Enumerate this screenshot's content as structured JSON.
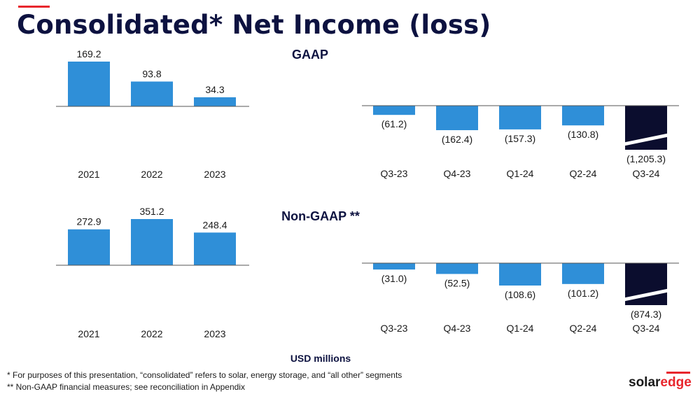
{
  "title": "Consolidated* Net Income (loss)",
  "units_label": "USD millions",
  "footnotes": [
    "* For purposes of this presentation, “consolidated” refers to solar, energy storage, and “all other” segments",
    "** Non-GAAP financial measures; see reconciliation in Appendix"
  ],
  "logo": {
    "part1": "solar",
    "part2": "edge"
  },
  "colors": {
    "bar": "#2f8fd8",
    "highlight": "#0b0d2e",
    "title": "#0d1240",
    "accent": "#e8262d"
  },
  "sections": {
    "gaap": "GAAP",
    "nongaap": "Non-GAAP **"
  },
  "chart_data": [
    {
      "type": "bar",
      "group": "GAAP annual",
      "categories": [
        "2021",
        "2022",
        "2023"
      ],
      "values": [
        169.2,
        93.8,
        34.3
      ],
      "labels": [
        "169.2",
        "93.8",
        "34.3"
      ]
    },
    {
      "type": "bar",
      "group": "GAAP quarterly",
      "categories": [
        "Q3-23",
        "Q4-23",
        "Q1-24",
        "Q2-24",
        "Q3-24"
      ],
      "values": [
        -61.2,
        -162.4,
        -157.3,
        -130.8,
        -1205.3
      ],
      "labels": [
        "(61.2)",
        "(162.4)",
        "(157.3)",
        "(130.8)",
        "(1,205.3)"
      ],
      "axis_break": "Q3-24"
    },
    {
      "type": "bar",
      "group": "Non-GAAP annual",
      "categories": [
        "2021",
        "2022",
        "2023"
      ],
      "values": [
        272.9,
        351.2,
        248.4
      ],
      "labels": [
        "272.9",
        "351.2",
        "248.4"
      ]
    },
    {
      "type": "bar",
      "group": "Non-GAAP quarterly",
      "categories": [
        "Q3-23",
        "Q4-23",
        "Q1-24",
        "Q2-24",
        "Q3-24"
      ],
      "values": [
        -31.0,
        -52.5,
        -108.6,
        -101.2,
        -874.3
      ],
      "labels": [
        "(31.0)",
        "(52.5)",
        "(108.6)",
        "(101.2)",
        "(874.3)"
      ],
      "axis_break": "Q3-24"
    }
  ]
}
